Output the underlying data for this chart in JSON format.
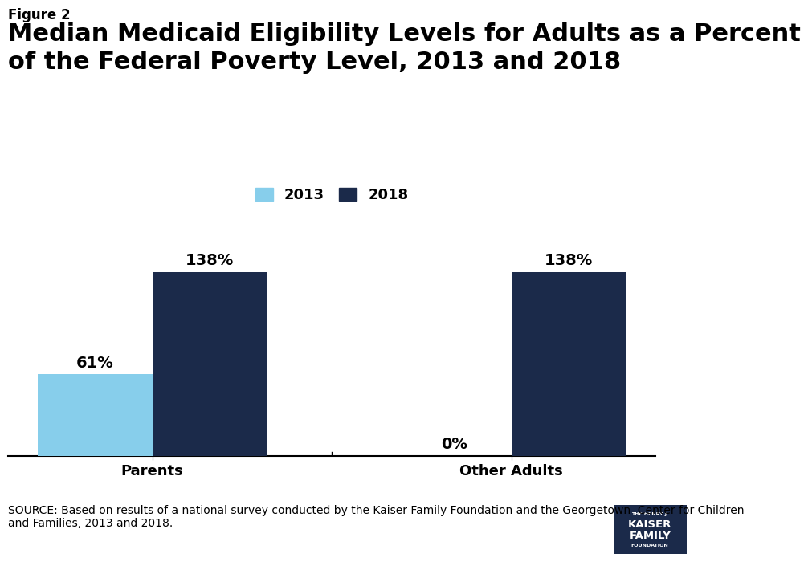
{
  "figure_label": "Figure 2",
  "title": "Median Medicaid Eligibility Levels for Adults as a Percent\nof the Federal Poverty Level, 2013 and 2018",
  "categories": [
    "Parents",
    "Other Adults"
  ],
  "values_2013": [
    61,
    0
  ],
  "values_2018": [
    138,
    138
  ],
  "labels_2013": [
    "61%",
    "0%"
  ],
  "labels_2018": [
    "138%",
    "138%"
  ],
  "color_2013": "#87CEEB",
  "color_2018": "#1B2A4A",
  "legend_labels": [
    "2013",
    "2018"
  ],
  "ylim": [
    0,
    165
  ],
  "bar_width": 0.32,
  "source_text": "SOURCE: Based on results of a national survey conducted by the Kaiser Family Foundation and the Georgetown  Center for Children\nand Families, 2013 and 2018.",
  "background_color": "#FFFFFF",
  "title_fontsize": 22,
  "figure_label_fontsize": 12,
  "label_fontsize": 14,
  "tick_fontsize": 13,
  "source_fontsize": 10
}
